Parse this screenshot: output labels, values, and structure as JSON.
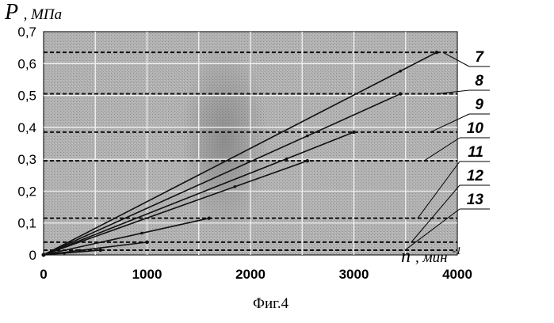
{
  "chart_data": {
    "type": "line",
    "title": "",
    "caption": "Фиг.4",
    "ylabel": "P",
    "ylabel_unit": ", МПа",
    "xlabel": "n",
    "xlabel_unit": ", мин",
    "xlabel_unit_exp": "-1",
    "xlim": [
      0,
      4000
    ],
    "ylim": [
      0,
      0.7
    ],
    "x_ticks": [
      "0",
      "1000",
      "2000",
      "3000",
      "4000"
    ],
    "y_ticks": [
      "0",
      "0,1",
      "0,2",
      "0,3",
      "0,4",
      "0,5",
      "0,6",
      "0,7"
    ],
    "grid": true,
    "background": "#a9a9a9",
    "line_color": "#111111",
    "series": [
      {
        "name": "7",
        "level": 0.635,
        "x_end": 3800,
        "marker_x": 3450
      },
      {
        "name": "8",
        "level": 0.505,
        "x_end": 3450,
        "marker_x": 2550
      },
      {
        "name": "9",
        "level": 0.385,
        "x_end": 3000,
        "marker_x": 2350
      },
      {
        "name": "10",
        "level": 0.295,
        "x_end": 2550,
        "marker_x": 1850
      },
      {
        "name": "11",
        "level": 0.115,
        "x_end": 1600,
        "marker_x": 950
      },
      {
        "name": "12",
        "level": 0.04,
        "x_end": 1000,
        "marker_x": 350
      },
      {
        "name": "13",
        "level": 0.015,
        "x_end": 550,
        "marker_x": 200
      }
    ]
  }
}
